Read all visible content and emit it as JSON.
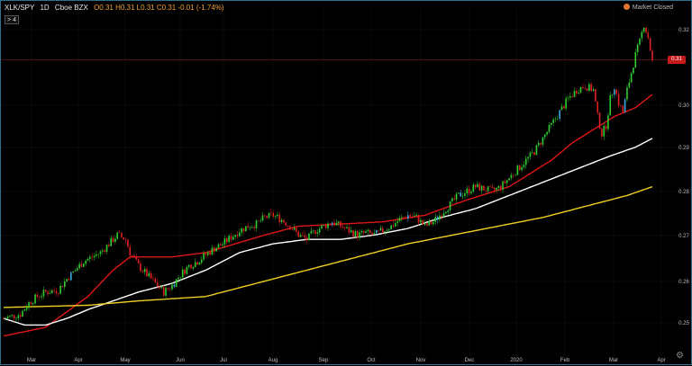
{
  "header": {
    "symbol": "XLK/SPY",
    "interval": "1D",
    "exchange": "Cboe BZX",
    "ohlc": "O0.31 H0.31 L0.31 C0.31 -0.01 (-1.74%)",
    "collapse_label": "> 4",
    "market_status": "Market Closed"
  },
  "icons": {
    "status": "status-dot-icon",
    "settings": "gear-icon"
  },
  "colors": {
    "background": "#000000",
    "up": "#2fcf2f",
    "down": "#e02020",
    "highlight": "#3fa9e0",
    "sma_fast": "#e01515",
    "sma_mid": "#ffffff",
    "sma_slow": "#f0d020",
    "last_price": "#c61a1a"
  },
  "chart_data": {
    "type": "line",
    "x_ticks": [
      "Mar",
      "Apr",
      "May",
      "Jun",
      "Jul",
      "Aug",
      "Sep",
      "Oct",
      "Nov",
      "Dec",
      "2020",
      "Feb",
      "Mar",
      "Apr"
    ],
    "y_ticks": [
      "0.32",
      "0.31",
      "0.30",
      "0.29",
      "0.28",
      "0.27",
      "0.26",
      "0.25"
    ],
    "ylim": [
      0.246,
      0.322
    ],
    "last_price_label": "0.31",
    "last_price": 0.3095,
    "price_path": [
      [
        0,
        0.251
      ],
      [
        4,
        0.2515
      ],
      [
        8,
        0.252
      ],
      [
        12,
        0.2545
      ],
      [
        16,
        0.256
      ],
      [
        20,
        0.257
      ],
      [
        26,
        0.2575
      ],
      [
        30,
        0.26
      ],
      [
        34,
        0.262
      ],
      [
        38,
        0.264
      ],
      [
        42,
        0.265
      ],
      [
        46,
        0.266
      ],
      [
        50,
        0.268
      ],
      [
        54,
        0.27
      ],
      [
        58,
        0.269
      ],
      [
        60,
        0.266
      ],
      [
        64,
        0.263
      ],
      [
        68,
        0.261
      ],
      [
        72,
        0.259
      ],
      [
        76,
        0.257
      ],
      [
        80,
        0.2585
      ],
      [
        84,
        0.261
      ],
      [
        88,
        0.263
      ],
      [
        92,
        0.264
      ],
      [
        96,
        0.2655
      ],
      [
        100,
        0.267
      ],
      [
        104,
        0.268
      ],
      [
        108,
        0.2695
      ],
      [
        112,
        0.271
      ],
      [
        116,
        0.272
      ],
      [
        120,
        0.2725
      ],
      [
        124,
        0.274
      ],
      [
        128,
        0.2745
      ],
      [
        132,
        0.2735
      ],
      [
        136,
        0.272
      ],
      [
        140,
        0.27
      ],
      [
        144,
        0.269
      ],
      [
        148,
        0.271
      ],
      [
        152,
        0.272
      ],
      [
        156,
        0.273
      ],
      [
        160,
        0.272
      ],
      [
        164,
        0.271
      ],
      [
        168,
        0.27
      ],
      [
        172,
        0.2705
      ],
      [
        176,
        0.27
      ],
      [
        180,
        0.271
      ],
      [
        184,
        0.272
      ],
      [
        188,
        0.2735
      ],
      [
        192,
        0.2745
      ],
      [
        196,
        0.274
      ],
      [
        200,
        0.272
      ],
      [
        204,
        0.273
      ],
      [
        208,
        0.275
      ],
      [
        212,
        0.277
      ],
      [
        216,
        0.279
      ],
      [
        220,
        0.28
      ],
      [
        224,
        0.281
      ],
      [
        228,
        0.2805
      ],
      [
        232,
        0.28
      ],
      [
        236,
        0.281
      ],
      [
        240,
        0.283
      ],
      [
        244,
        0.285
      ],
      [
        248,
        0.287
      ],
      [
        252,
        0.289
      ],
      [
        256,
        0.292
      ],
      [
        260,
        0.295
      ],
      [
        264,
        0.298
      ],
      [
        268,
        0.301
      ],
      [
        272,
        0.303
      ],
      [
        276,
        0.304
      ],
      [
        280,
        0.303
      ],
      [
        282,
        0.297
      ],
      [
        284,
        0.293
      ],
      [
        286,
        0.295
      ],
      [
        288,
        0.301
      ],
      [
        290,
        0.304
      ],
      [
        292,
        0.3
      ],
      [
        294,
        0.298
      ],
      [
        296,
        0.303
      ],
      [
        298,
        0.307
      ],
      [
        300,
        0.311
      ],
      [
        302,
        0.314
      ],
      [
        304,
        0.318
      ],
      [
        306,
        0.315
      ],
      [
        308,
        0.3095
      ]
    ],
    "series": [
      {
        "key": "sma_fast",
        "points": [
          [
            0,
            0.247
          ],
          [
            20,
            0.249
          ],
          [
            40,
            0.256
          ],
          [
            52,
            0.262
          ],
          [
            60,
            0.265
          ],
          [
            80,
            0.265
          ],
          [
            96,
            0.266
          ],
          [
            110,
            0.268
          ],
          [
            124,
            0.27
          ],
          [
            140,
            0.272
          ],
          [
            160,
            0.2725
          ],
          [
            180,
            0.273
          ],
          [
            200,
            0.2745
          ],
          [
            220,
            0.278
          ],
          [
            240,
            0.281
          ],
          [
            250,
            0.284
          ],
          [
            260,
            0.287
          ],
          [
            270,
            0.291
          ],
          [
            280,
            0.294
          ],
          [
            290,
            0.297
          ],
          [
            300,
            0.299
          ],
          [
            308,
            0.302
          ]
        ]
      },
      {
        "key": "sma_mid",
        "points": [
          [
            0,
            0.251
          ],
          [
            10,
            0.2495
          ],
          [
            20,
            0.2495
          ],
          [
            30,
            0.251
          ],
          [
            40,
            0.253
          ],
          [
            52,
            0.255
          ],
          [
            64,
            0.257
          ],
          [
            80,
            0.259
          ],
          [
            96,
            0.262
          ],
          [
            112,
            0.266
          ],
          [
            128,
            0.268
          ],
          [
            144,
            0.269
          ],
          [
            160,
            0.269
          ],
          [
            176,
            0.27
          ],
          [
            192,
            0.2715
          ],
          [
            208,
            0.274
          ],
          [
            224,
            0.276
          ],
          [
            240,
            0.279
          ],
          [
            256,
            0.282
          ],
          [
            272,
            0.285
          ],
          [
            288,
            0.288
          ],
          [
            300,
            0.29
          ],
          [
            308,
            0.292
          ]
        ]
      },
      {
        "key": "sma_slow",
        "points": [
          [
            0,
            0.2535
          ],
          [
            40,
            0.254
          ],
          [
            64,
            0.255
          ],
          [
            96,
            0.256
          ],
          [
            128,
            0.26
          ],
          [
            160,
            0.264
          ],
          [
            192,
            0.268
          ],
          [
            224,
            0.271
          ],
          [
            256,
            0.274
          ],
          [
            280,
            0.277
          ],
          [
            296,
            0.279
          ],
          [
            308,
            0.281
          ]
        ]
      }
    ]
  }
}
